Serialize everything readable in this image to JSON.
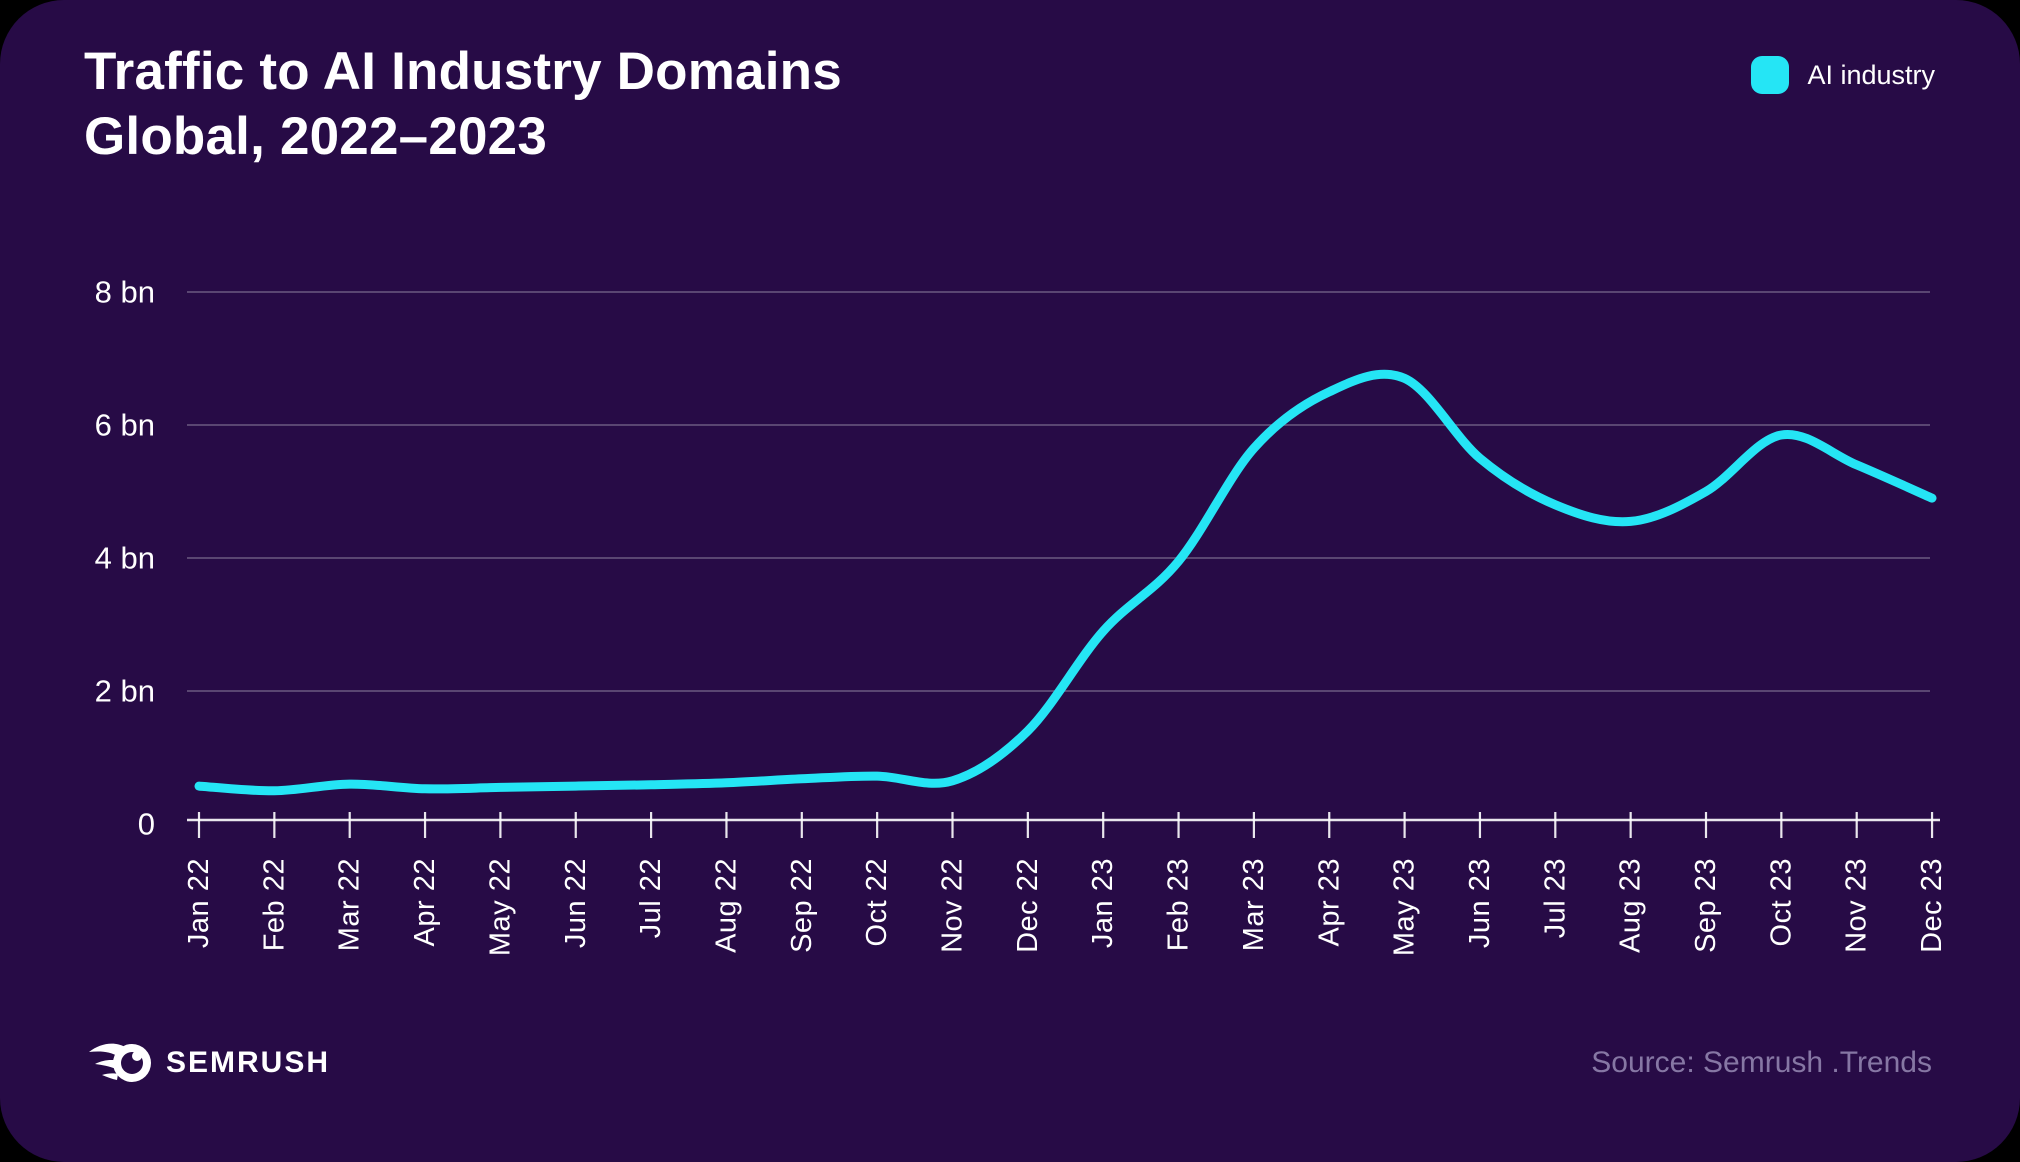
{
  "header": {
    "title_line1": "Traffic to AI Industry Domains",
    "title_line2": "Global, 2022–2023"
  },
  "legend": {
    "label": "AI industry"
  },
  "footer": {
    "brand": "SEMRUSH",
    "source": "Source: Semrush .Trends"
  },
  "colors": {
    "outer_background": "#000000",
    "card_background": "#270b46",
    "accent": "#25e5f5",
    "grid": "rgba(255,255,255,0.32)",
    "axis": "rgba(255,255,255,0.9)",
    "text": "#ffffff",
    "muted_text": "#8677a4"
  },
  "chart_data": {
    "type": "line",
    "title": "Traffic to AI Industry Domains, Global, 2022–2023",
    "categories": [
      "Jan 22",
      "Feb 22",
      "Mar 22",
      "Apr 22",
      "May 22",
      "Jun 22",
      "Jul 22",
      "Aug 22",
      "Sep 22",
      "Oct 22",
      "Nov 22",
      "Dec 22",
      "Jan 23",
      "Feb 23",
      "Mar 23",
      "Apr 23",
      "May 23",
      "Jun 23",
      "Jul 23",
      "Aug 23",
      "Sep 23",
      "Oct 23",
      "Nov 23",
      "Dec 23"
    ],
    "series": [
      {
        "name": "AI industry",
        "unit": "bn",
        "values": [
          0.57,
          0.5,
          0.6,
          0.53,
          0.55,
          0.57,
          0.59,
          0.62,
          0.68,
          0.72,
          0.65,
          1.4,
          2.9,
          3.95,
          5.65,
          6.5,
          6.7,
          5.5,
          4.8,
          4.55,
          5.0,
          5.85,
          5.4,
          4.9
        ]
      }
    ],
    "y_ticks": [
      {
        "label": "8 bn",
        "value": 8
      },
      {
        "label": "6 bn",
        "value": 6
      },
      {
        "label": "4 bn",
        "value": 4
      },
      {
        "label": "2 bn",
        "value": 2
      },
      {
        "label": "0",
        "value": 0
      }
    ],
    "ylim": [
      0,
      8.6
    ],
    "xlabel": "",
    "ylabel": "",
    "grid": "horizontal",
    "legend_position": "top-right"
  }
}
